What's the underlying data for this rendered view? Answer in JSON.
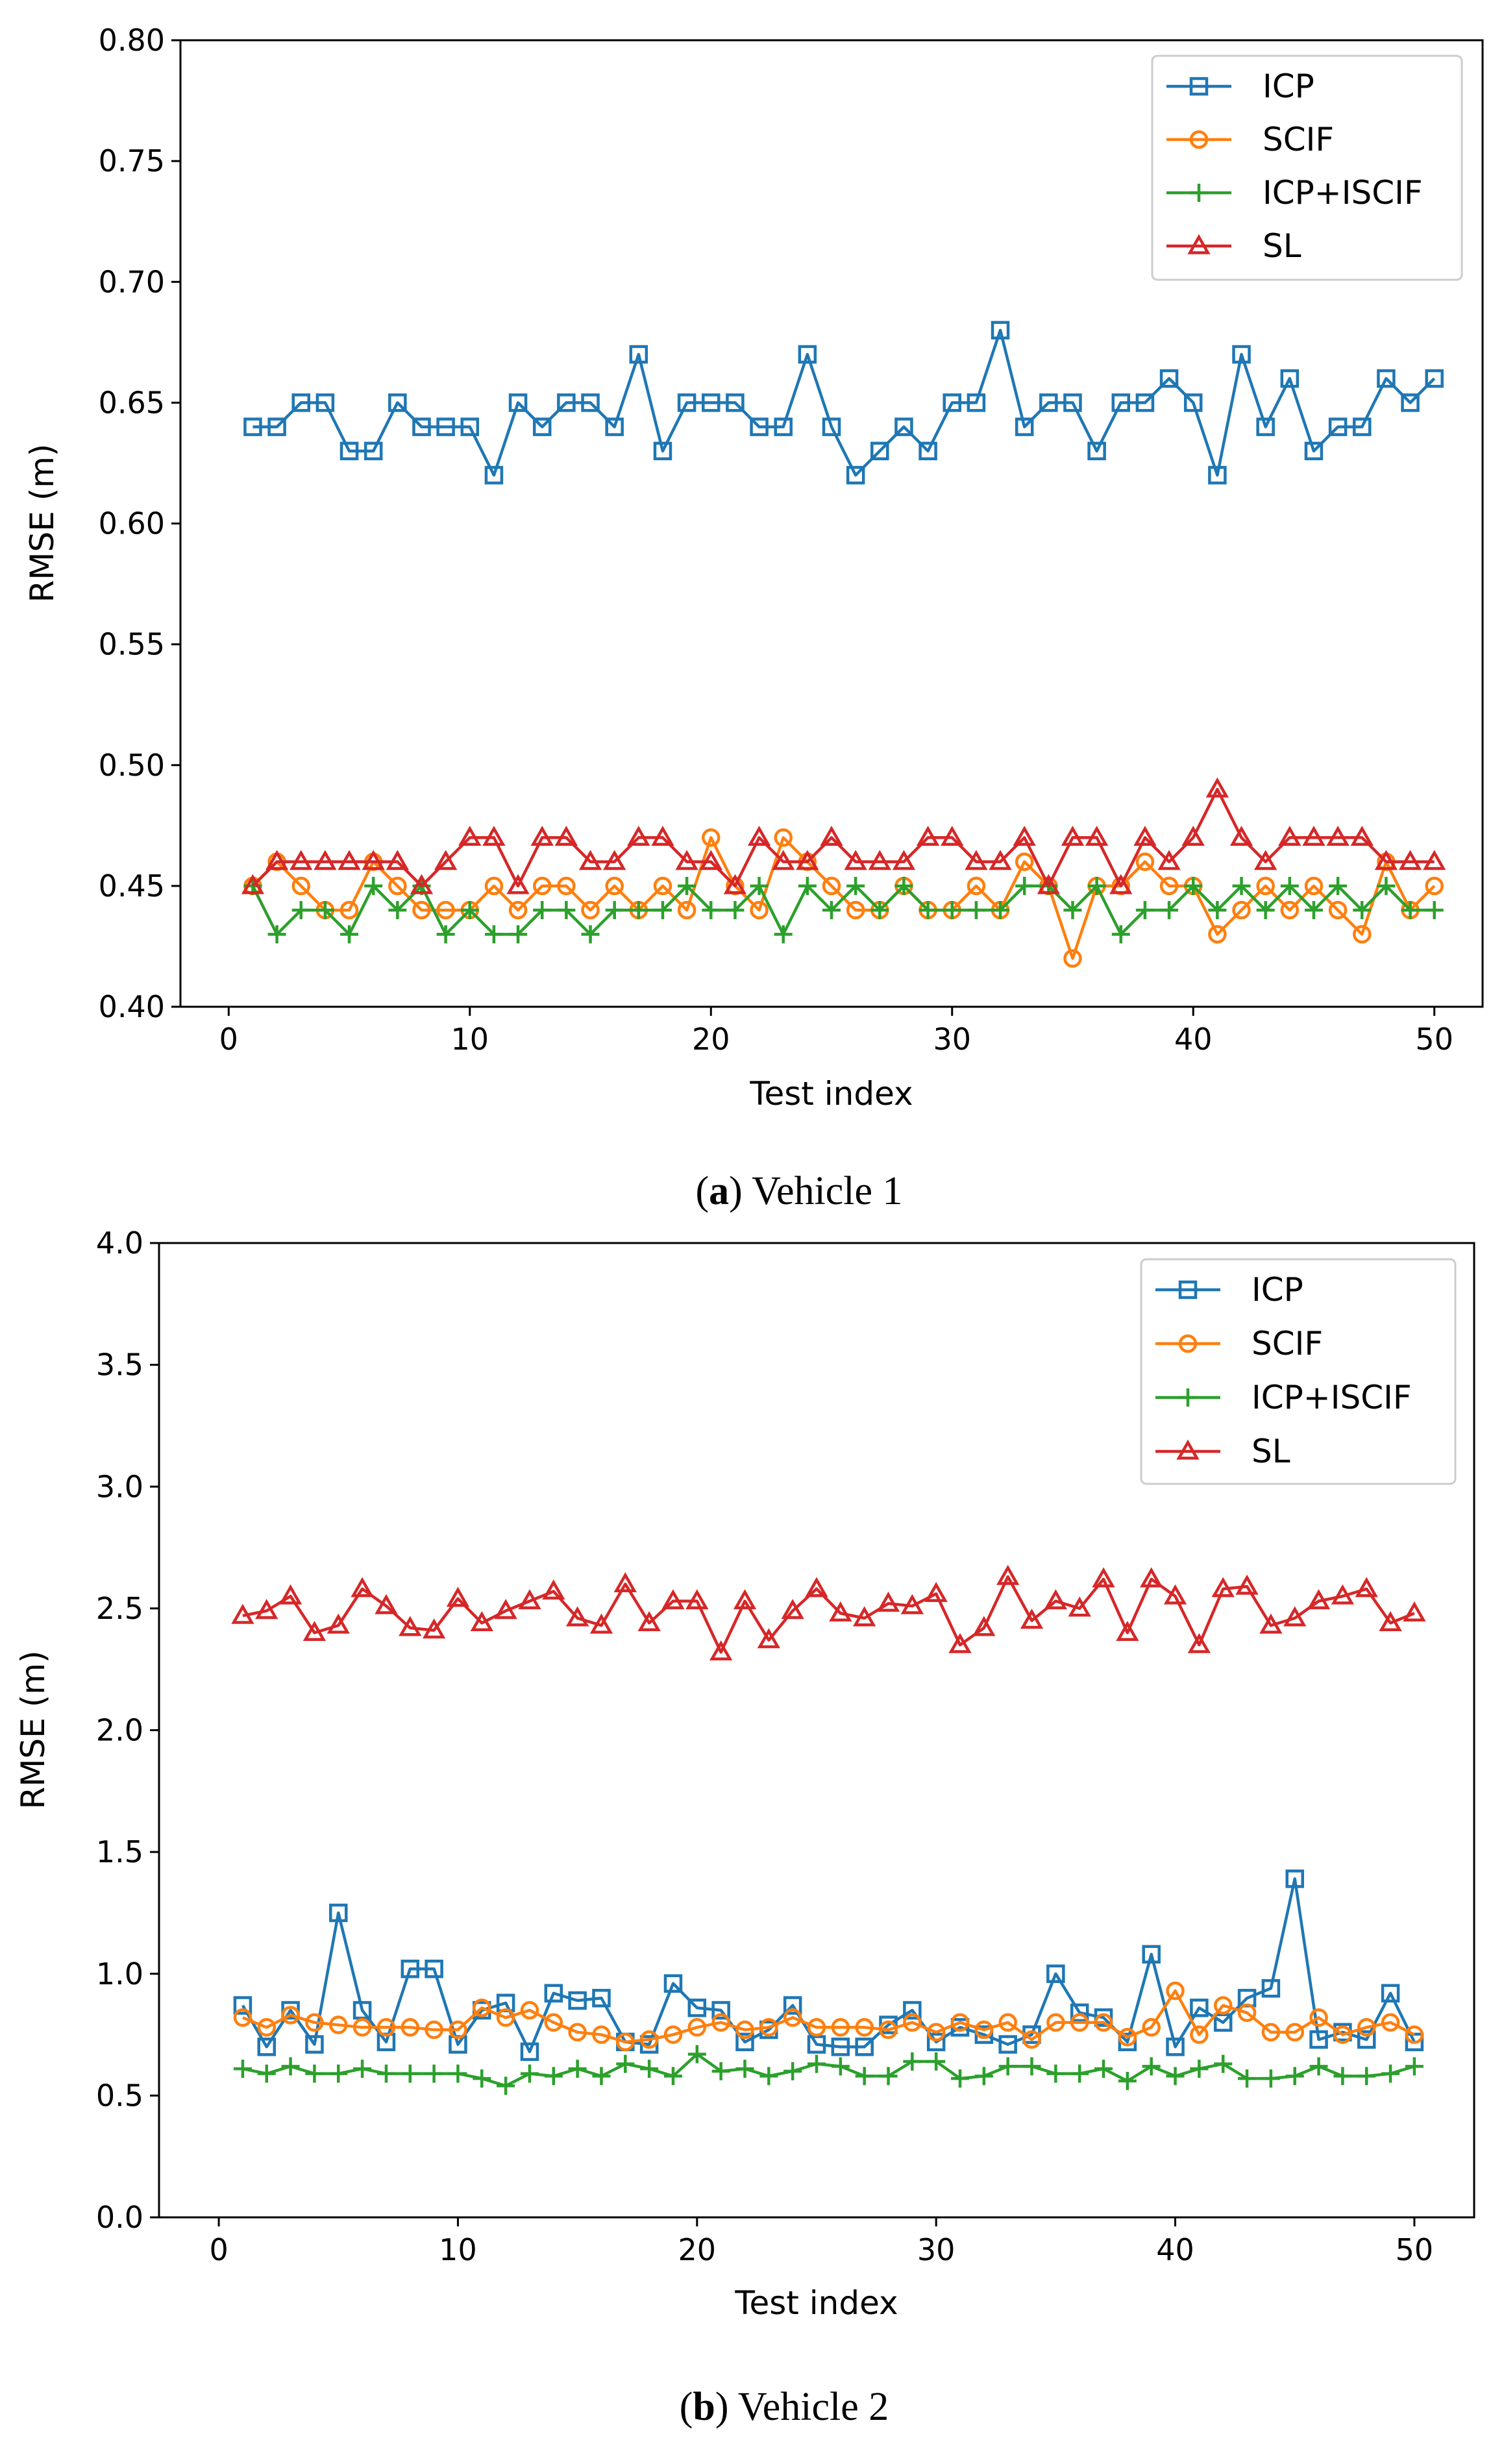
{
  "colors": {
    "ICP": "#1f77b4",
    "SCIF": "#ff7f0e",
    "ICP+ISCIF": "#2ca02c",
    "SL": "#d62728"
  },
  "chart_data": [
    {
      "type": "line",
      "caption_letter": "(a)",
      "caption_text": " Vehicle 1",
      "xlabel": "Test index",
      "ylabel": "RMSE (m)",
      "xlim": [
        -2,
        52
      ],
      "ylim": [
        0.4,
        0.8
      ],
      "xticks": [
        0,
        10,
        20,
        30,
        40,
        50
      ],
      "xtick_labels": [
        "0",
        "10",
        "20",
        "30",
        "40",
        "50"
      ],
      "yticks": [
        0.4,
        0.45,
        0.5,
        0.55,
        0.6,
        0.65,
        0.7,
        0.75,
        0.8
      ],
      "ytick_labels": [
        "0.40",
        "0.45",
        "0.50",
        "0.55",
        "0.60",
        "0.65",
        "0.70",
        "0.75",
        "0.80"
      ],
      "legend_position": "top-right",
      "x": [
        1,
        2,
        3,
        4,
        5,
        6,
        7,
        8,
        9,
        10,
        11,
        12,
        13,
        14,
        15,
        16,
        17,
        18,
        19,
        20,
        21,
        22,
        23,
        24,
        25,
        26,
        27,
        28,
        29,
        30,
        31,
        32,
        33,
        34,
        35,
        36,
        37,
        38,
        39,
        40,
        41,
        42,
        43,
        44,
        45,
        46,
        47,
        48,
        49,
        50
      ],
      "series": [
        {
          "name": "ICP",
          "marker": "square",
          "values": [
            0.64,
            0.64,
            0.65,
            0.65,
            0.63,
            0.63,
            0.65,
            0.64,
            0.64,
            0.64,
            0.62,
            0.65,
            0.64,
            0.65,
            0.65,
            0.64,
            0.67,
            0.63,
            0.65,
            0.65,
            0.65,
            0.64,
            0.64,
            0.67,
            0.64,
            0.62,
            0.63,
            0.64,
            0.63,
            0.65,
            0.65,
            0.68,
            0.64,
            0.65,
            0.65,
            0.63,
            0.65,
            0.65,
            0.66,
            0.65,
            0.62,
            0.67,
            0.64,
            0.66,
            0.63,
            0.64,
            0.64,
            0.66,
            0.65,
            0.66
          ]
        },
        {
          "name": "SCIF",
          "marker": "circle",
          "values": [
            0.45,
            0.46,
            0.45,
            0.44,
            0.44,
            0.46,
            0.45,
            0.44,
            0.44,
            0.44,
            0.45,
            0.44,
            0.45,
            0.45,
            0.44,
            0.45,
            0.44,
            0.45,
            0.44,
            0.47,
            0.45,
            0.44,
            0.47,
            0.46,
            0.45,
            0.44,
            0.44,
            0.45,
            0.44,
            0.44,
            0.45,
            0.44,
            0.46,
            0.45,
            0.42,
            0.45,
            0.45,
            0.46,
            0.45,
            0.45,
            0.43,
            0.44,
            0.45,
            0.44,
            0.45,
            0.44,
            0.43,
            0.46,
            0.44,
            0.45
          ]
        },
        {
          "name": "ICP+ISCIF",
          "marker": "plus",
          "values": [
            0.45,
            0.43,
            0.44,
            0.44,
            0.43,
            0.45,
            0.44,
            0.45,
            0.43,
            0.44,
            0.43,
            0.43,
            0.44,
            0.44,
            0.43,
            0.44,
            0.44,
            0.44,
            0.45,
            0.44,
            0.44,
            0.45,
            0.43,
            0.45,
            0.44,
            0.45,
            0.44,
            0.45,
            0.44,
            0.44,
            0.44,
            0.44,
            0.45,
            0.45,
            0.44,
            0.45,
            0.43,
            0.44,
            0.44,
            0.45,
            0.44,
            0.45,
            0.44,
            0.45,
            0.44,
            0.45,
            0.44,
            0.45,
            0.44,
            0.44
          ]
        },
        {
          "name": "SL",
          "marker": "triangle",
          "values": [
            0.45,
            0.46,
            0.46,
            0.46,
            0.46,
            0.46,
            0.46,
            0.45,
            0.46,
            0.47,
            0.47,
            0.45,
            0.47,
            0.47,
            0.46,
            0.46,
            0.47,
            0.47,
            0.46,
            0.46,
            0.45,
            0.47,
            0.46,
            0.46,
            0.47,
            0.46,
            0.46,
            0.46,
            0.47,
            0.47,
            0.46,
            0.46,
            0.47,
            0.45,
            0.47,
            0.47,
            0.45,
            0.47,
            0.46,
            0.47,
            0.49,
            0.47,
            0.46,
            0.47,
            0.47,
            0.47,
            0.47,
            0.46,
            0.46,
            0.46
          ]
        }
      ]
    },
    {
      "type": "line",
      "caption_letter": "(b)",
      "caption_text": " Vehicle 2",
      "xlabel": "Test index",
      "ylabel": "RMSE (m)",
      "xlim": [
        -2.5,
        52.5
      ],
      "ylim": [
        0.0,
        4.0
      ],
      "xticks": [
        0,
        10,
        20,
        30,
        40,
        50
      ],
      "xtick_labels": [
        "0",
        "10",
        "20",
        "30",
        "40",
        "50"
      ],
      "yticks": [
        0.0,
        0.5,
        1.0,
        1.5,
        2.0,
        2.5,
        3.0,
        3.5,
        4.0
      ],
      "ytick_labels": [
        "0.0",
        "0.5",
        "1.0",
        "1.5",
        "2.0",
        "2.5",
        "3.0",
        "3.5",
        "4.0"
      ],
      "legend_position": "top-right",
      "x": [
        1,
        2,
        3,
        4,
        5,
        6,
        7,
        8,
        9,
        10,
        11,
        12,
        13,
        14,
        15,
        16,
        17,
        18,
        19,
        20,
        21,
        22,
        23,
        24,
        25,
        26,
        27,
        28,
        29,
        30,
        31,
        32,
        33,
        34,
        35,
        36,
        37,
        38,
        39,
        40,
        41,
        42,
        43,
        44,
        45,
        46,
        47,
        48,
        49,
        50
      ],
      "series": [
        {
          "name": "ICP",
          "marker": "square",
          "values": [
            0.87,
            0.7,
            0.85,
            0.71,
            1.25,
            0.85,
            0.72,
            1.02,
            1.02,
            0.71,
            0.85,
            0.88,
            0.68,
            0.92,
            0.89,
            0.9,
            0.72,
            0.71,
            0.96,
            0.86,
            0.85,
            0.72,
            0.77,
            0.87,
            0.71,
            0.7,
            0.7,
            0.79,
            0.85,
            0.72,
            0.78,
            0.75,
            0.71,
            0.75,
            1.0,
            0.84,
            0.82,
            0.72,
            1.08,
            0.7,
            0.86,
            0.8,
            0.9,
            0.94,
            1.39,
            0.73,
            0.76,
            0.73,
            0.92,
            0.72
          ]
        },
        {
          "name": "SCIF",
          "marker": "circle",
          "values": [
            0.82,
            0.78,
            0.83,
            0.8,
            0.79,
            0.78,
            0.78,
            0.78,
            0.77,
            0.77,
            0.86,
            0.82,
            0.85,
            0.8,
            0.76,
            0.75,
            0.72,
            0.73,
            0.75,
            0.78,
            0.8,
            0.77,
            0.78,
            0.82,
            0.78,
            0.78,
            0.78,
            0.77,
            0.8,
            0.76,
            0.8,
            0.77,
            0.8,
            0.73,
            0.8,
            0.8,
            0.8,
            0.74,
            0.78,
            0.93,
            0.75,
            0.87,
            0.84,
            0.76,
            0.76,
            0.82,
            0.75,
            0.78,
            0.8,
            0.75
          ]
        },
        {
          "name": "ICP+ISCIF",
          "marker": "plus",
          "values": [
            0.61,
            0.59,
            0.62,
            0.59,
            0.59,
            0.61,
            0.59,
            0.59,
            0.59,
            0.59,
            0.57,
            0.54,
            0.59,
            0.58,
            0.61,
            0.58,
            0.63,
            0.61,
            0.58,
            0.67,
            0.6,
            0.61,
            0.58,
            0.6,
            0.63,
            0.62,
            0.58,
            0.58,
            0.64,
            0.64,
            0.57,
            0.58,
            0.62,
            0.62,
            0.59,
            0.59,
            0.61,
            0.56,
            0.62,
            0.58,
            0.61,
            0.63,
            0.57,
            0.57,
            0.58,
            0.62,
            0.58,
            0.58,
            0.59,
            0.62
          ]
        },
        {
          "name": "SL",
          "marker": "triangle",
          "values": [
            2.47,
            2.49,
            2.55,
            2.4,
            2.43,
            2.58,
            2.51,
            2.42,
            2.41,
            2.54,
            2.44,
            2.49,
            2.53,
            2.57,
            2.46,
            2.43,
            2.6,
            2.44,
            2.53,
            2.53,
            2.32,
            2.53,
            2.37,
            2.49,
            2.58,
            2.48,
            2.46,
            2.52,
            2.51,
            2.56,
            2.35,
            2.42,
            2.63,
            2.45,
            2.53,
            2.5,
            2.62,
            2.4,
            2.62,
            2.55,
            2.35,
            2.58,
            2.59,
            2.43,
            2.46,
            2.53,
            2.55,
            2.58,
            2.44,
            2.48
          ]
        }
      ]
    }
  ]
}
